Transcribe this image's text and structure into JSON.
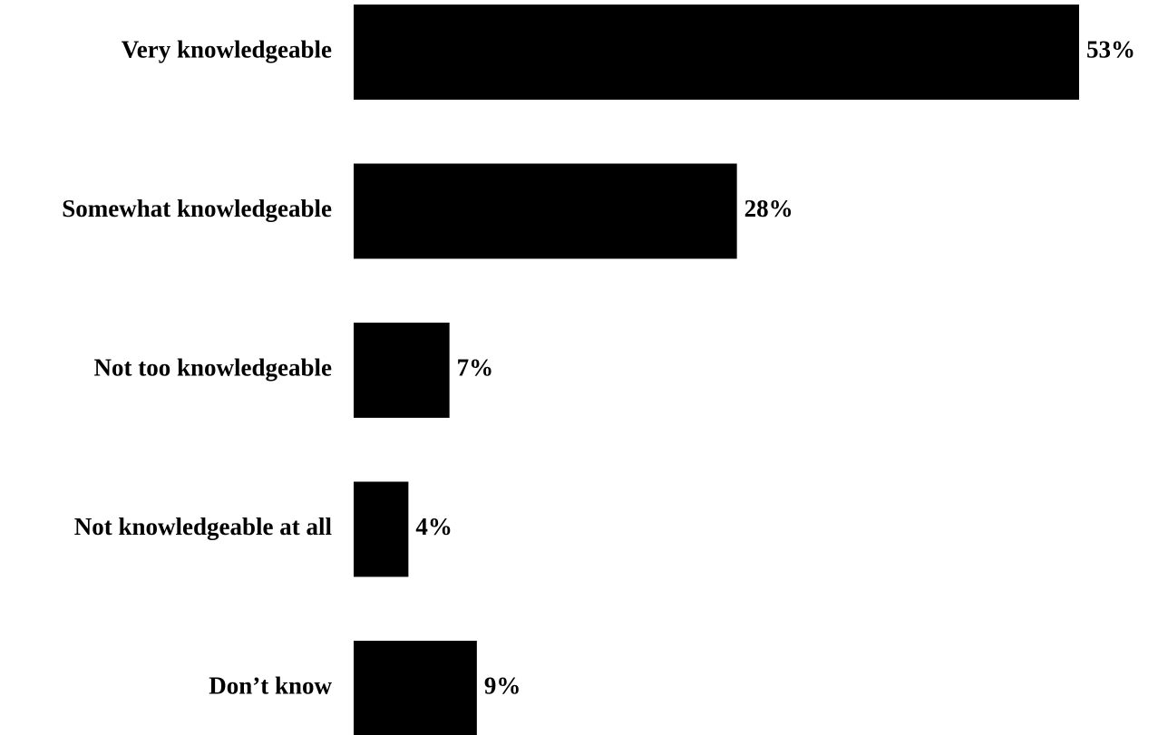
{
  "chart_data": {
    "type": "bar",
    "orientation": "horizontal",
    "categories": [
      "Very knowledgeable",
      "Somewhat knowledgeable",
      "Not too knowledgeable",
      "Not knowledgeable at all",
      "Don’t know"
    ],
    "values": [
      53,
      28,
      7,
      4,
      9
    ],
    "value_labels": [
      "53%",
      "28%",
      "7%",
      "4%",
      "9%"
    ],
    "unit": "%",
    "title": "",
    "xlabel": "",
    "ylabel": "",
    "xlim": [
      0,
      53
    ],
    "grid": false,
    "legend": "none",
    "colors": {
      "bar": "#000000",
      "text": "#000000",
      "background": "#ffffff"
    }
  }
}
